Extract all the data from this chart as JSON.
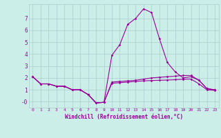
{
  "x": [
    0,
    1,
    2,
    3,
    4,
    5,
    6,
    7,
    8,
    9,
    10,
    11,
    12,
    13,
    14,
    15,
    16,
    17,
    18,
    19,
    20,
    21,
    22,
    23
  ],
  "line1": [
    2.1,
    1.5,
    1.5,
    1.3,
    1.3,
    1.0,
    1.0,
    0.6,
    -0.1,
    -0.05,
    1.65,
    1.7,
    1.75,
    1.8,
    1.9,
    2.0,
    2.05,
    2.1,
    2.15,
    2.2,
    2.2,
    1.8,
    1.1,
    1.0
  ],
  "line2": [
    2.1,
    1.5,
    1.5,
    1.3,
    1.3,
    1.0,
    1.0,
    0.6,
    -0.1,
    -0.05,
    1.55,
    1.6,
    1.65,
    1.7,
    1.75,
    1.78,
    1.8,
    1.82,
    1.85,
    1.88,
    1.9,
    1.5,
    1.0,
    0.95
  ],
  "line3": [
    2.1,
    1.5,
    1.5,
    1.3,
    1.3,
    1.0,
    1.0,
    0.6,
    -0.1,
    -0.05,
    3.9,
    4.8,
    6.5,
    7.0,
    7.8,
    7.5,
    5.3,
    3.3,
    2.5,
    2.0,
    2.1,
    1.8,
    1.1,
    1.0
  ],
  "bg_color": "#cceee8",
  "line_color": "#990099",
  "grid_color": "#aacccc",
  "xlabel": "Windchill (Refroidissement éolien,°C)",
  "xlabel_color": "#990099",
  "tick_color": "#990099",
  "xlim": [
    -0.5,
    23.5
  ],
  "ylim": [
    -0.5,
    8.2
  ],
  "yticks": [
    0,
    1,
    2,
    3,
    4,
    5,
    6,
    7
  ],
  "ytick_labels": [
    "-0",
    "1",
    "2",
    "3",
    "4",
    "5",
    "6",
    "7"
  ],
  "xticks": [
    0,
    1,
    2,
    3,
    4,
    5,
    6,
    7,
    8,
    9,
    10,
    11,
    12,
    13,
    14,
    15,
    16,
    17,
    18,
    19,
    20,
    21,
    22,
    23
  ],
  "figsize": [
    3.2,
    2.0
  ],
  "dpi": 100
}
